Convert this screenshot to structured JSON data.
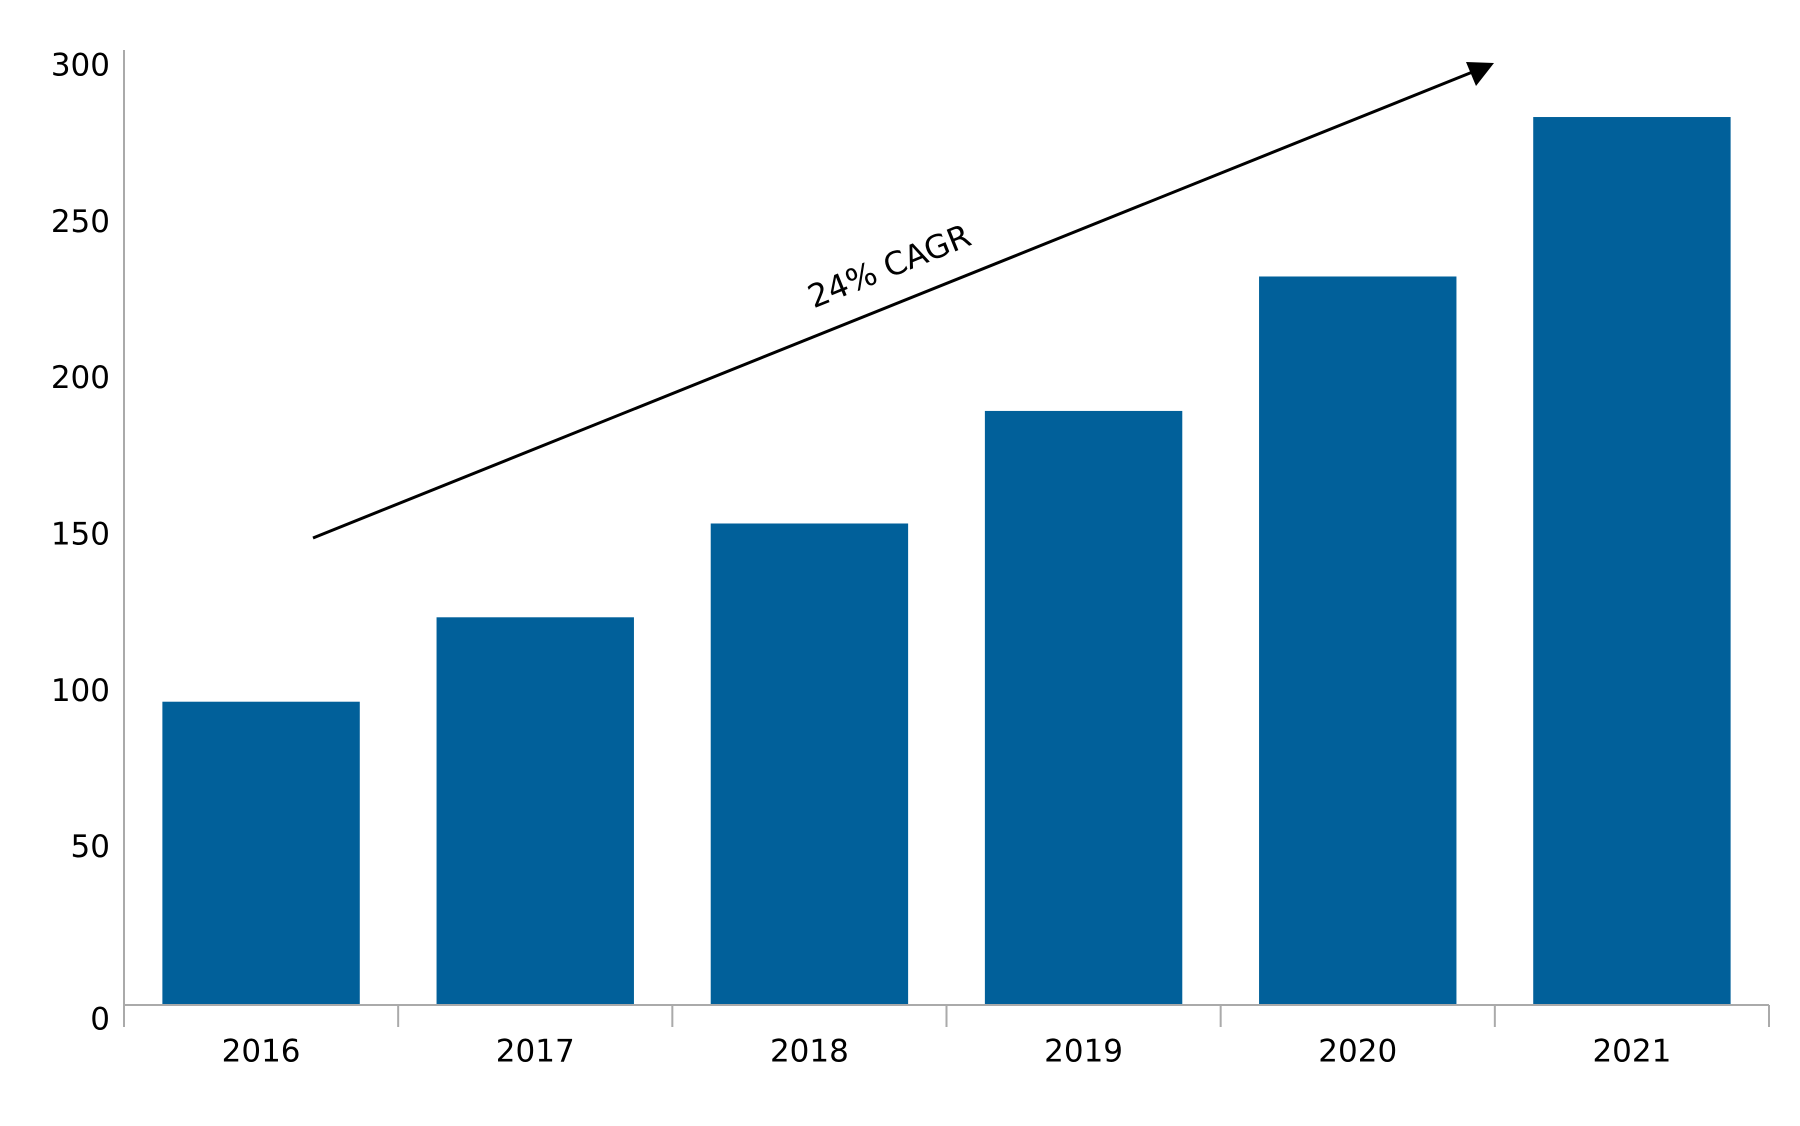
{
  "chart_data": {
    "type": "bar",
    "categories": [
      "2016",
      "2017",
      "2018",
      "2019",
      "2020",
      "2021"
    ],
    "values": [
      97,
      124,
      154,
      190,
      233,
      284
    ],
    "color": "#01609a",
    "ylim": [
      0,
      300
    ],
    "yticks": [
      0,
      50,
      100,
      150,
      200,
      250,
      300
    ],
    "grid": false,
    "annotation": "24% CAGR"
  }
}
